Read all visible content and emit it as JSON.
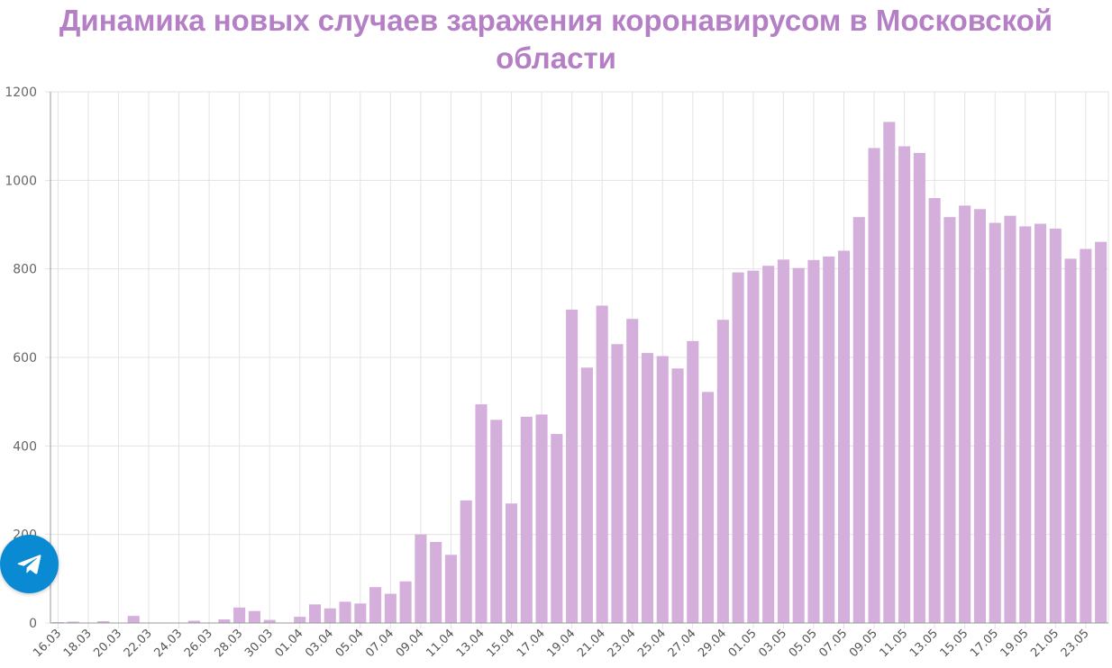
{
  "colors": {
    "title": "#b57fc6",
    "bar": "#d4afdb",
    "grid": "#e3e3e3",
    "axis": "#999999",
    "telegram": "#0a8ad3"
  },
  "telegram_button": {
    "icon": "telegram-paper-plane-icon"
  },
  "chart_data": {
    "type": "bar",
    "title_lines": [
      "Динамика новых случаев заражения коронавирусом в Московской",
      "области"
    ],
    "xlabel": "",
    "ylabel": "",
    "ylim": [
      0,
      1200
    ],
    "yticks": [
      0,
      200,
      400,
      600,
      800,
      1000,
      1200
    ],
    "grid": true,
    "legend": "none",
    "categories": [
      "16.03",
      "17.03",
      "18.03",
      "19.03",
      "20.03",
      "21.03",
      "22.03",
      "23.03",
      "24.03",
      "25.03",
      "26.03",
      "27.03",
      "28.03",
      "29.03",
      "30.03",
      "31.03",
      "01.04",
      "02.04",
      "03.04",
      "04.04",
      "05.04",
      "06.04",
      "07.04",
      "08.04",
      "09.04",
      "10.04",
      "11.04",
      "12.04",
      "13.04",
      "14.04",
      "15.04",
      "16.04",
      "17.04",
      "18.04",
      "19.04",
      "20.04",
      "21.04",
      "22.04",
      "23.04",
      "24.04",
      "25.04",
      "26.04",
      "27.04",
      "28.04",
      "29.04",
      "30.04",
      "01.05",
      "02.05",
      "03.05",
      "04.05",
      "05.05",
      "06.05",
      "07.05",
      "08.05",
      "09.05",
      "10.05",
      "11.05",
      "12.05",
      "13.05",
      "14.05",
      "15.05",
      "16.05",
      "17.05",
      "18.05",
      "19.05",
      "20.05",
      "21.05",
      "22.05",
      "23.05",
      "24.05"
    ],
    "x_tick_labels": [
      "16.03",
      "18.03",
      "20.03",
      "22.03",
      "24.03",
      "26.03",
      "28.03",
      "30.03",
      "01.04",
      "03.04",
      "05.04",
      "07.04",
      "09.04",
      "11.04",
      "13.04",
      "15.04",
      "17.04",
      "19.04",
      "21.04",
      "23.04",
      "25.04",
      "27.04",
      "29.04",
      "01.05",
      "03.05",
      "05.05",
      "07.05",
      "09.05",
      "11.05",
      "13.05",
      "15.05",
      "17.05",
      "19.05",
      "21.05",
      "23.05"
    ],
    "values": [
      2,
      3,
      1,
      4,
      1,
      16,
      1,
      1,
      1,
      5,
      1,
      8,
      35,
      27,
      7,
      1,
      14,
      42,
      33,
      48,
      44,
      81,
      66,
      94,
      200,
      183,
      154,
      277,
      494,
      459,
      270,
      466,
      471,
      427,
      708,
      577,
      717,
      630,
      687,
      610,
      603,
      575,
      637,
      522,
      685,
      792,
      796,
      807,
      821,
      802,
      820,
      828,
      841,
      917,
      1073,
      1132,
      1077,
      1062,
      960,
      917,
      943,
      935,
      904,
      920,
      896,
      902,
      891,
      823,
      845,
      861
    ]
  }
}
